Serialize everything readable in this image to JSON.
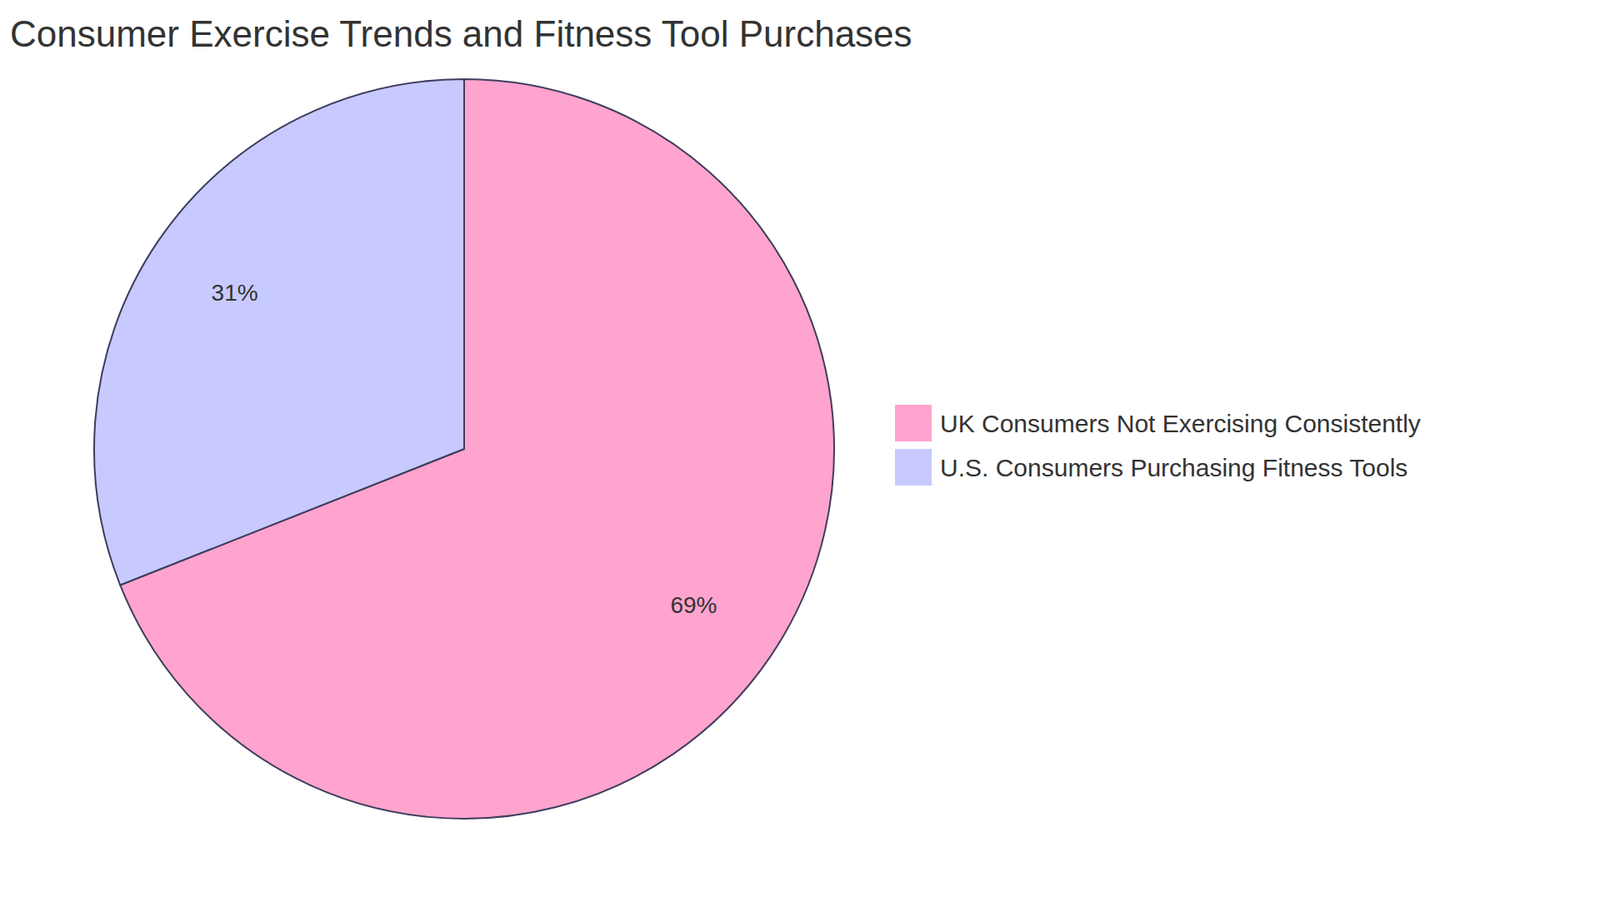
{
  "chart_data": {
    "type": "pie",
    "title": "Consumer Exercise Trends and Fitness Tool Purchases",
    "categories": [
      "UK Consumers Not Exercising Consistently",
      "U.S. Consumers Purchasing Fitness Tools"
    ],
    "values": [
      69,
      31
    ],
    "value_labels": [
      "69%",
      "31%"
    ],
    "colors": [
      "#ffa4ce",
      "#c8caff"
    ],
    "data_labels": true,
    "legend": "right"
  }
}
